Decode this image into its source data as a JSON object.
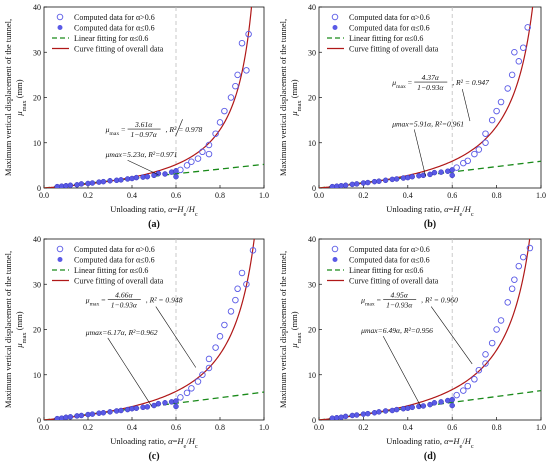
{
  "colors": {
    "computed_marker": "#5a5ae6",
    "linear_fit": "#1a8a1a",
    "curve_fit": "#b01818",
    "divider": "#bdbdbd",
    "axis": "#111111"
  },
  "shared": {
    "xlabel": "Unloading ratio, α=He/Hc",
    "ylabel_line1": "Maximum vertical displacement of the tunnel,",
    "ylabel_line2": "μmax (mm)",
    "x_ticks": [
      "0.0",
      "0.2",
      "0.4",
      "0.6",
      "0.8",
      "1.0"
    ],
    "y_ticks": [
      "0",
      "10",
      "20",
      "30",
      "40"
    ],
    "legend": {
      "open": "Computed data for α>0.6",
      "filled": "Computed data for α≤0.6",
      "linear": "Linear fitting for α≤0.6",
      "curve": "Curve fitting of overall data"
    }
  },
  "chart_data": [
    {
      "type": "scatter",
      "panel": "(a)",
      "xlim": [
        0.0,
        1.0
      ],
      "ylim": [
        0,
        40
      ],
      "divider_x": 0.6,
      "curve_fit": {
        "a": 3.61,
        "b": 0.97,
        "r2": 0.978,
        "equation_num": "3.61α",
        "equation_den": "1−0.97α",
        "r2_text": "R² = 0.978"
      },
      "linear_fit": {
        "k": 5.23,
        "r2": 0.971,
        "text": "μmax=5.23α,  R²=0.971"
      },
      "filled_points": [
        [
          0.06,
          0.3
        ],
        [
          0.08,
          0.4
        ],
        [
          0.1,
          0.5
        ],
        [
          0.12,
          0.6
        ],
        [
          0.15,
          0.7
        ],
        [
          0.17,
          0.9
        ],
        [
          0.2,
          1.0
        ],
        [
          0.22,
          1.1
        ],
        [
          0.25,
          1.3
        ],
        [
          0.27,
          1.4
        ],
        [
          0.3,
          1.6
        ],
        [
          0.33,
          1.7
        ],
        [
          0.35,
          1.8
        ],
        [
          0.38,
          2.0
        ],
        [
          0.4,
          2.1
        ],
        [
          0.42,
          2.3
        ],
        [
          0.45,
          2.4
        ],
        [
          0.47,
          2.5
        ],
        [
          0.5,
          2.8
        ],
        [
          0.52,
          3.2
        ],
        [
          0.55,
          3.1
        ],
        [
          0.58,
          3.5
        ],
        [
          0.6,
          3.8
        ],
        [
          0.6,
          2.5
        ]
      ],
      "open_points": [
        [
          0.62,
          4.0
        ],
        [
          0.65,
          5.0
        ],
        [
          0.67,
          5.8
        ],
        [
          0.7,
          6.5
        ],
        [
          0.72,
          8.0
        ],
        [
          0.75,
          9.5
        ],
        [
          0.75,
          7.5
        ],
        [
          0.78,
          12.0
        ],
        [
          0.8,
          14.5
        ],
        [
          0.82,
          17.0
        ],
        [
          0.85,
          20.0
        ],
        [
          0.87,
          22.5
        ],
        [
          0.88,
          25.0
        ],
        [
          0.9,
          32.0
        ],
        [
          0.92,
          26.0
        ],
        [
          0.93,
          34.0
        ]
      ]
    },
    {
      "type": "scatter",
      "panel": "(b)",
      "xlim": [
        0.0,
        1.0
      ],
      "ylim": [
        0,
        40
      ],
      "divider_x": 0.6,
      "curve_fit": {
        "a": 4.37,
        "b": 0.93,
        "r2": 0.947,
        "equation_num": "4.37α",
        "equation_den": "1−0.93α",
        "r2_text": "R² = 0.947"
      },
      "linear_fit": {
        "k": 5.91,
        "r2": 0.961,
        "text": "μmax=5.91α,  R²=0.961"
      },
      "filled_points": [
        [
          0.06,
          0.3
        ],
        [
          0.08,
          0.4
        ],
        [
          0.1,
          0.5
        ],
        [
          0.12,
          0.6
        ],
        [
          0.15,
          0.8
        ],
        [
          0.17,
          0.9
        ],
        [
          0.2,
          1.1
        ],
        [
          0.22,
          1.2
        ],
        [
          0.25,
          1.4
        ],
        [
          0.27,
          1.5
        ],
        [
          0.3,
          1.7
        ],
        [
          0.33,
          1.9
        ],
        [
          0.35,
          2.0
        ],
        [
          0.38,
          2.2
        ],
        [
          0.4,
          2.3
        ],
        [
          0.42,
          2.5
        ],
        [
          0.45,
          2.7
        ],
        [
          0.47,
          2.8
        ],
        [
          0.5,
          3.0
        ],
        [
          0.52,
          3.4
        ],
        [
          0.55,
          3.5
        ],
        [
          0.58,
          3.7
        ],
        [
          0.6,
          4.0
        ],
        [
          0.6,
          2.8
        ]
      ],
      "open_points": [
        [
          0.62,
          4.5
        ],
        [
          0.65,
          5.5
        ],
        [
          0.67,
          6.0
        ],
        [
          0.7,
          7.5
        ],
        [
          0.72,
          8.5
        ],
        [
          0.75,
          10.0
        ],
        [
          0.75,
          12.0
        ],
        [
          0.78,
          15.0
        ],
        [
          0.8,
          17.0
        ],
        [
          0.82,
          19.0
        ],
        [
          0.85,
          22.0
        ],
        [
          0.87,
          25.0
        ],
        [
          0.88,
          30.0
        ],
        [
          0.9,
          28.0
        ],
        [
          0.92,
          31.0
        ],
        [
          0.94,
          35.5
        ]
      ]
    },
    {
      "type": "scatter",
      "panel": "(c)",
      "xlim": [
        0.0,
        1.0
      ],
      "ylim": [
        0,
        40
      ],
      "divider_x": 0.6,
      "curve_fit": {
        "a": 4.66,
        "b": 0.93,
        "r2": 0.948,
        "equation_num": "4.66α",
        "equation_den": "1−0.93α",
        "r2_text": "R² = 0.948"
      },
      "linear_fit": {
        "k": 6.17,
        "r2": 0.962,
        "text": "μmax=6.17α,  R²=0.962"
      },
      "filled_points": [
        [
          0.06,
          0.3
        ],
        [
          0.08,
          0.4
        ],
        [
          0.1,
          0.6
        ],
        [
          0.12,
          0.7
        ],
        [
          0.15,
          0.9
        ],
        [
          0.17,
          1.0
        ],
        [
          0.2,
          1.2
        ],
        [
          0.22,
          1.3
        ],
        [
          0.25,
          1.5
        ],
        [
          0.27,
          1.6
        ],
        [
          0.3,
          1.8
        ],
        [
          0.33,
          2.0
        ],
        [
          0.35,
          2.1
        ],
        [
          0.38,
          2.3
        ],
        [
          0.4,
          2.5
        ],
        [
          0.42,
          2.6
        ],
        [
          0.45,
          2.8
        ],
        [
          0.47,
          2.9
        ],
        [
          0.5,
          3.2
        ],
        [
          0.52,
          3.6
        ],
        [
          0.55,
          3.8
        ],
        [
          0.58,
          4.0
        ],
        [
          0.6,
          4.2
        ],
        [
          0.6,
          3.0
        ]
      ],
      "open_points": [
        [
          0.62,
          5.0
        ],
        [
          0.65,
          6.0
        ],
        [
          0.67,
          7.0
        ],
        [
          0.7,
          8.5
        ],
        [
          0.72,
          10.0
        ],
        [
          0.75,
          11.5
        ],
        [
          0.75,
          13.5
        ],
        [
          0.78,
          16.0
        ],
        [
          0.8,
          18.5
        ],
        [
          0.82,
          21.0
        ],
        [
          0.85,
          24.0
        ],
        [
          0.87,
          26.5
        ],
        [
          0.88,
          29.0
        ],
        [
          0.9,
          32.5
        ],
        [
          0.92,
          30.0
        ],
        [
          0.95,
          37.5
        ]
      ]
    },
    {
      "type": "scatter",
      "panel": "(d)",
      "xlim": [
        0.0,
        1.0
      ],
      "ylim": [
        0,
        40
      ],
      "divider_x": 0.6,
      "curve_fit": {
        "a": 4.95,
        "b": 0.93,
        "r2": 0.96,
        "equation_num": "4.95α",
        "equation_den": "1−0.93α",
        "r2_text": "R² = 0.960"
      },
      "linear_fit": {
        "k": 6.49,
        "r2": 0.956,
        "text": "μmax=6.49α,  R²=0.956"
      },
      "filled_points": [
        [
          0.06,
          0.4
        ],
        [
          0.08,
          0.5
        ],
        [
          0.1,
          0.6
        ],
        [
          0.12,
          0.8
        ],
        [
          0.15,
          1.0
        ],
        [
          0.17,
          1.1
        ],
        [
          0.2,
          1.3
        ],
        [
          0.22,
          1.4
        ],
        [
          0.25,
          1.6
        ],
        [
          0.27,
          1.8
        ],
        [
          0.3,
          2.0
        ],
        [
          0.33,
          2.1
        ],
        [
          0.35,
          2.3
        ],
        [
          0.38,
          2.5
        ],
        [
          0.4,
          2.6
        ],
        [
          0.42,
          2.8
        ],
        [
          0.45,
          3.0
        ],
        [
          0.47,
          3.1
        ],
        [
          0.5,
          3.4
        ],
        [
          0.52,
          3.8
        ],
        [
          0.55,
          4.0
        ],
        [
          0.58,
          4.3
        ],
        [
          0.6,
          4.5
        ],
        [
          0.6,
          3.2
        ]
      ],
      "open_points": [
        [
          0.62,
          5.5
        ],
        [
          0.65,
          6.5
        ],
        [
          0.67,
          7.5
        ],
        [
          0.7,
          9.0
        ],
        [
          0.72,
          11.0
        ],
        [
          0.75,
          12.5
        ],
        [
          0.75,
          14.5
        ],
        [
          0.78,
          17.0
        ],
        [
          0.8,
          20.0
        ],
        [
          0.82,
          22.0
        ],
        [
          0.85,
          26.0
        ],
        [
          0.87,
          29.0
        ],
        [
          0.88,
          31.0
        ],
        [
          0.9,
          34.0
        ],
        [
          0.92,
          36.0
        ],
        [
          0.95,
          38.0
        ]
      ]
    }
  ]
}
